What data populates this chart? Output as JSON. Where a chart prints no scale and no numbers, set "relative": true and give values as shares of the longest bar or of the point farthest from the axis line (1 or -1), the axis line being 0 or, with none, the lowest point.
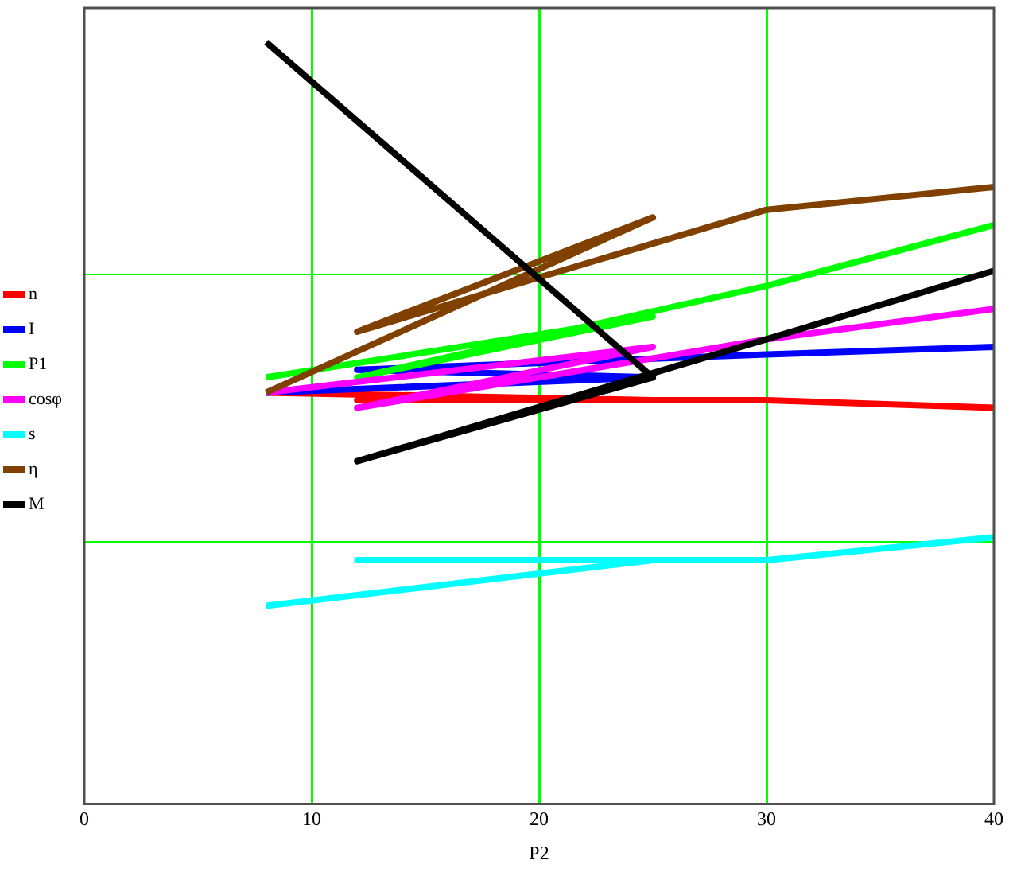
{
  "chart_data": {
    "type": "line",
    "relative": true,
    "xlabel": "P2",
    "x": [
      8,
      25,
      12,
      30,
      40
    ],
    "xlim": [
      0,
      40
    ],
    "xticks": [
      0,
      10,
      20,
      30,
      40
    ],
    "grid": "x",
    "legend": "left",
    "marker": "none",
    "line_style": "solid",
    "ref_lines": [
      {
        "axis": "y",
        "value": 0.695,
        "color": "#00ff00"
      },
      {
        "axis": "y",
        "value": 0.344,
        "color": "#00ff00"
      }
    ],
    "series": [
      {
        "name": "n",
        "color": "#ff0000",
        "values": [
          0.54,
          0.53,
          0.53,
          0.53,
          0.52
        ]
      },
      {
        "name": "I",
        "color": "#0000ff",
        "values": [
          0.54,
          0.56,
          0.57,
          0.59,
          0.6
        ]
      },
      {
        "name": "P1",
        "color": "#00ff00",
        "values": [
          0.56,
          0.64,
          0.56,
          0.68,
          0.76
        ]
      },
      {
        "name": "cosφ",
        "color": "#ff00ff",
        "values": [
          0.54,
          0.6,
          0.52,
          0.61,
          0.65
        ]
      },
      {
        "name": "s",
        "color": "#00ffff",
        "values": [
          0.26,
          0.32,
          0.32,
          0.32,
          0.35
        ]
      },
      {
        "name": "η",
        "color": "#804000",
        "values": [
          0.54,
          0.77,
          0.62,
          0.78,
          0.81
        ]
      },
      {
        "name": "M",
        "color": "#000000",
        "values": [
          1,
          0.56,
          0.45,
          0.61,
          0.7
        ]
      }
    ]
  }
}
